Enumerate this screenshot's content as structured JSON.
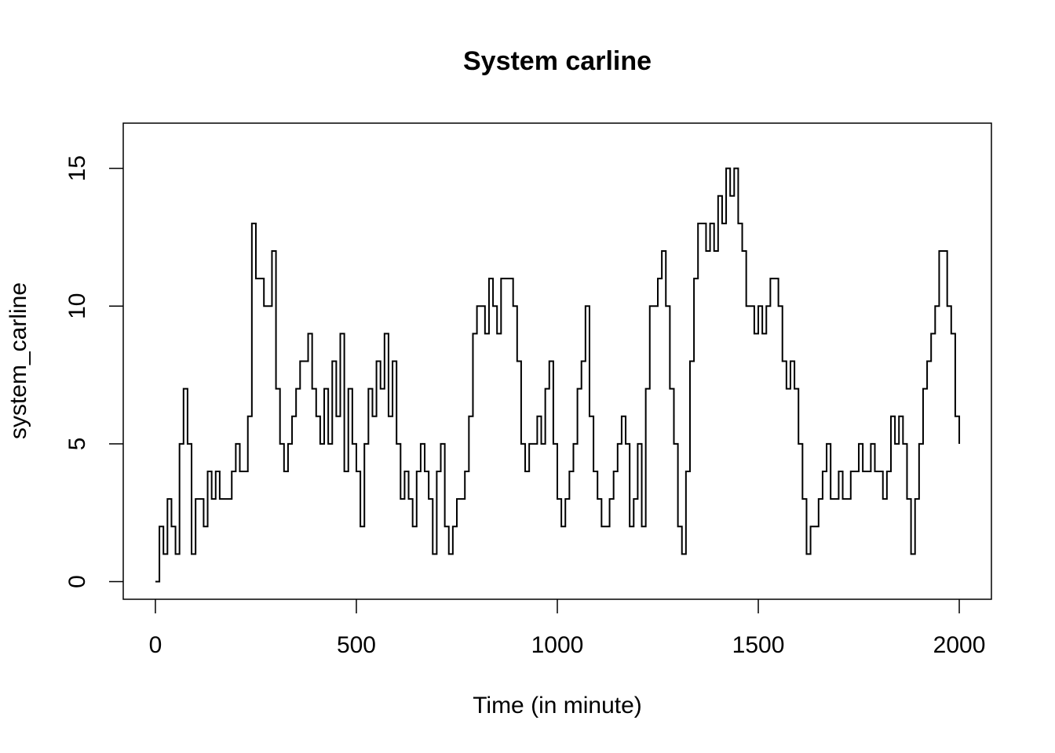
{
  "chart_data": {
    "type": "line",
    "drawstyle": "steps-post",
    "title": "System carline",
    "x_label": "Time (in minute)",
    "y_label": "system_carline",
    "xlim": [
      -80,
      2080
    ],
    "ylim": [
      -0.64,
      16.64
    ],
    "xticks": [
      0,
      500,
      1000,
      1500,
      2000
    ],
    "yticks": [
      0,
      5,
      10,
      15
    ],
    "color": "#000000",
    "x": [
      0,
      10,
      20,
      30,
      40,
      50,
      60,
      70,
      80,
      90,
      100,
      110,
      120,
      130,
      140,
      150,
      160,
      170,
      180,
      190,
      200,
      210,
      220,
      230,
      240,
      250,
      260,
      270,
      280,
      290,
      300,
      310,
      320,
      330,
      340,
      350,
      360,
      370,
      380,
      390,
      400,
      410,
      420,
      430,
      440,
      450,
      460,
      470,
      480,
      490,
      500,
      510,
      520,
      530,
      540,
      550,
      560,
      570,
      580,
      590,
      600,
      610,
      620,
      630,
      640,
      650,
      660,
      670,
      680,
      690,
      700,
      710,
      720,
      730,
      740,
      750,
      760,
      770,
      780,
      790,
      800,
      810,
      820,
      830,
      840,
      850,
      860,
      870,
      880,
      890,
      900,
      910,
      920,
      930,
      940,
      950,
      960,
      970,
      980,
      990,
      1000,
      1010,
      1020,
      1030,
      1040,
      1050,
      1060,
      1070,
      1080,
      1090,
      1100,
      1110,
      1120,
      1130,
      1140,
      1150,
      1160,
      1170,
      1180,
      1190,
      1200,
      1210,
      1220,
      1230,
      1240,
      1250,
      1260,
      1270,
      1280,
      1290,
      1300,
      1310,
      1320,
      1330,
      1340,
      1350,
      1360,
      1370,
      1380,
      1390,
      1400,
      1410,
      1420,
      1430,
      1440,
      1450,
      1460,
      1470,
      1480,
      1490,
      1500,
      1510,
      1520,
      1530,
      1540,
      1550,
      1560,
      1570,
      1580,
      1590,
      1600,
      1610,
      1620,
      1630,
      1640,
      1650,
      1660,
      1670,
      1680,
      1690,
      1700,
      1710,
      1720,
      1730,
      1740,
      1750,
      1760,
      1770,
      1780,
      1790,
      1800,
      1810,
      1820,
      1830,
      1840,
      1850,
      1860,
      1870,
      1880,
      1890,
      1900,
      1910,
      1920,
      1930,
      1940,
      1950,
      1960,
      1970,
      1980,
      1990,
      2000
    ],
    "values": [
      0,
      2,
      1,
      3,
      2,
      1,
      5,
      7,
      5,
      1,
      3,
      3,
      2,
      4,
      3,
      4,
      3,
      3,
      3,
      4,
      5,
      4,
      4,
      6,
      13,
      11,
      11,
      10,
      10,
      12,
      7,
      5,
      4,
      5,
      6,
      7,
      8,
      8,
      9,
      7,
      6,
      5,
      7,
      5,
      8,
      6,
      9,
      4,
      7,
      5,
      4,
      2,
      5,
      7,
      6,
      8,
      7,
      9,
      6,
      8,
      5,
      3,
      4,
      3,
      2,
      4,
      5,
      4,
      3,
      1,
      4,
      5,
      2,
      1,
      2,
      3,
      3,
      4,
      6,
      9,
      10,
      10,
      9,
      11,
      10,
      9,
      11,
      11,
      11,
      10,
      8,
      5,
      4,
      5,
      5,
      6,
      5,
      7,
      8,
      5,
      3,
      2,
      3,
      4,
      5,
      7,
      8,
      10,
      6,
      4,
      3,
      2,
      2,
      3,
      4,
      5,
      6,
      5,
      2,
      3,
      5,
      2,
      7,
      10,
      10,
      11,
      12,
      10,
      7,
      5,
      2,
      1,
      4,
      8,
      11,
      13,
      13,
      12,
      13,
      12,
      14,
      13,
      15,
      14,
      15,
      13,
      12,
      10,
      10,
      9,
      10,
      9,
      10,
      11,
      11,
      10,
      8,
      7,
      8,
      7,
      5,
      3,
      1,
      2,
      2,
      3,
      4,
      5,
      3,
      3,
      4,
      3,
      3,
      4,
      4,
      5,
      4,
      4,
      5,
      4,
      4,
      3,
      4,
      6,
      5,
      6,
      5,
      3,
      1,
      3,
      5,
      7,
      8,
      9,
      10,
      12,
      12,
      10,
      9,
      6,
      5
    ]
  }
}
